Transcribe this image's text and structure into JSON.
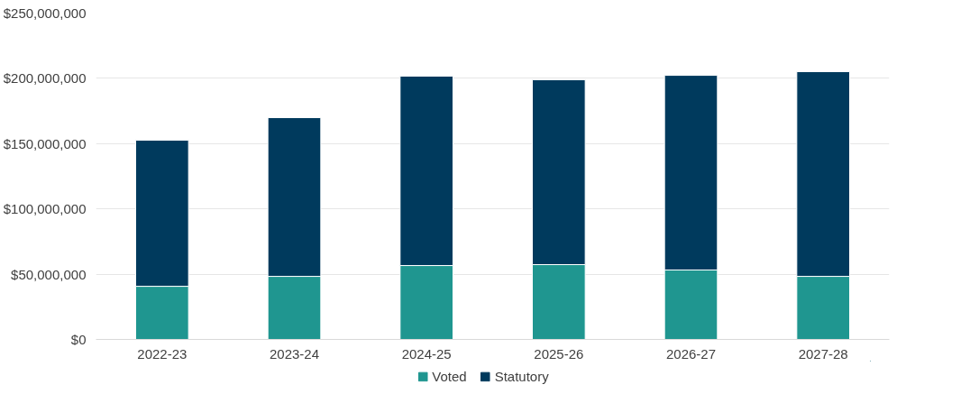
{
  "chart_data": {
    "type": "bar",
    "stacked": true,
    "categories": [
      "2022-23",
      "2023-24",
      "2024-25",
      "2025-26",
      "2026-27",
      "2027-28"
    ],
    "series": [
      {
        "name": "Voted",
        "color": "#1f9690",
        "values": [
          40700000,
          48300000,
          56600000,
          57300000,
          53200000,
          48300000
        ]
      },
      {
        "name": "Statutory",
        "color": "#003a5d",
        "values": [
          111900000,
          121600000,
          145100000,
          141600000,
          149100000,
          156800000
        ]
      }
    ],
    "ylim": [
      0,
      250000000
    ],
    "yticks": [
      {
        "value": 0,
        "label": "$0"
      },
      {
        "value": 50000000,
        "label": "$50,000,000"
      },
      {
        "value": 100000000,
        "label": "$100,000,000"
      },
      {
        "value": 150000000,
        "label": "$150,000,000"
      },
      {
        "value": 200000000,
        "label": "$200,000,000"
      },
      {
        "value": 250000000,
        "label": "$250,000,000"
      }
    ],
    "grid": "y",
    "legend": "bottom"
  }
}
